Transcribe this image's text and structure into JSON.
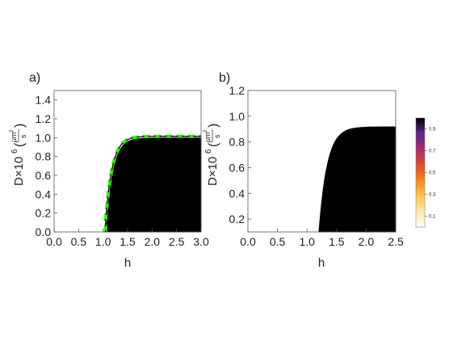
{
  "chart_data": [
    {
      "type": "heatmap",
      "panel_label": "a)",
      "xlabel": "h",
      "ylabel_prefix": "D×10",
      "ylabel_exp": "6",
      "ylabel_num": "μm",
      "ylabel_num_exp": "2",
      "ylabel_den": "s",
      "xlim": [
        0,
        3.0
      ],
      "ylim": [
        0,
        1.5
      ],
      "x_ticks": [
        "0.0",
        "0.5",
        "1.0",
        "1.5",
        "2.0",
        "2.5",
        "3.0"
      ],
      "y_ticks": [
        "0.0",
        "0.2",
        "0.4",
        "0.6",
        "0.8",
        "1.0",
        "1.2",
        "1.4"
      ],
      "boundary": {
        "h0": 1.05,
        "D_max": 1.0
      },
      "dashed_overlay": {
        "color": "#33ee11",
        "h0": 1.05,
        "D_max": 1.0
      },
      "levels": [
        0.1,
        0.3,
        0.5,
        0.7,
        0.9
      ]
    },
    {
      "type": "heatmap",
      "panel_label": "b)",
      "xlabel": "h",
      "ylabel_prefix": "D×10",
      "ylabel_exp": "6",
      "ylabel_num": "μm",
      "ylabel_num_exp": "2",
      "ylabel_den": "s",
      "xlim": [
        0,
        2.5
      ],
      "ylim": [
        0.1,
        1.2
      ],
      "x_ticks": [
        "0.0",
        "0.5",
        "1.0",
        "1.5",
        "2.0",
        "2.5"
      ],
      "y_ticks": [
        "0.2",
        "0.4",
        "0.6",
        "0.8",
        "1.0",
        "1.2"
      ],
      "boundary": {
        "h0": 1.18,
        "D_max": 0.92
      },
      "levels": [
        0.1,
        0.3,
        0.5,
        0.7,
        0.9
      ]
    }
  ],
  "colorbar": {
    "ticks": [
      "0.9",
      "0.7",
      "0.5",
      "0.3",
      "0.1"
    ],
    "stops": [
      "#ffffff",
      "#fde9a8",
      "#fbbf4a",
      "#f27f1c",
      "#d94a2b",
      "#a4286a",
      "#5a2a88",
      "#000000"
    ]
  }
}
